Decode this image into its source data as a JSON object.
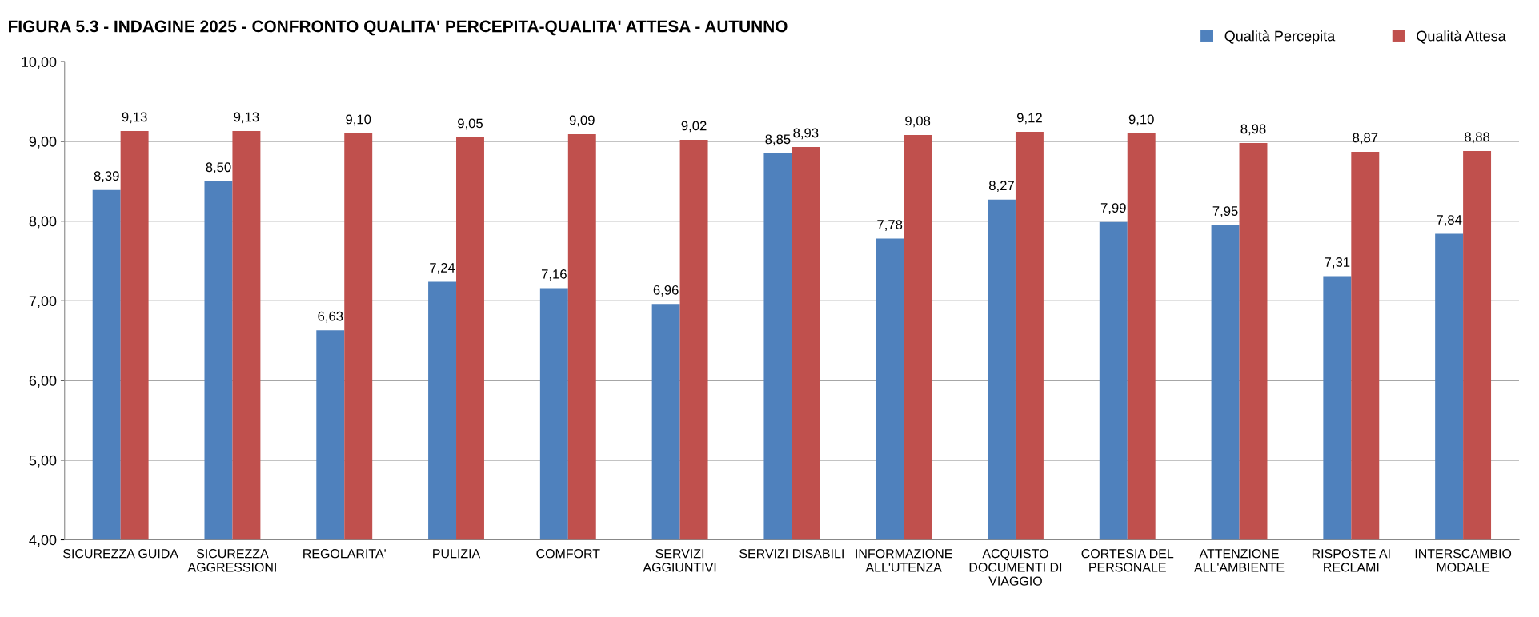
{
  "chart_data": {
    "type": "bar",
    "title": "FIGURA 5.3 - INDAGINE 2025 - CONFRONTO QUALITA' PERCEPITA-QUALITA' ATTESA - AUTUNNO",
    "categories": [
      "SICUREZZA GUIDA",
      "SICUREZZA\nAGGRESSIONI",
      "REGOLARITA'",
      "PULIZIA",
      "COMFORT",
      "SERVIZI\nAGGIUNTIVI",
      "SERVIZI DISABILI",
      "INFORMAZIONE\nALL'UTENZA",
      "ACQUISTO\nDOCUMENTI DI\nVIAGGIO",
      "CORTESIA DEL\nPERSONALE",
      "ATTENZIONE\nALL'AMBIENTE",
      "RISPOSTE AI\nRECLAMI",
      "INTERSCAMBIO\nMODALE"
    ],
    "series": [
      {
        "name": "Qualità Percepita",
        "color": "#4f81bd",
        "values": [
          8.39,
          8.5,
          6.63,
          7.24,
          7.16,
          6.96,
          8.85,
          7.78,
          8.27,
          7.99,
          7.95,
          7.31,
          7.84
        ],
        "value_labels": [
          "8,39",
          "8,50",
          "6,63",
          "7,24",
          "7,16",
          "6,96",
          "8,85",
          "7,78",
          "8,27",
          "7,99",
          "7,95",
          "7,31",
          "7,84"
        ]
      },
      {
        "name": "Qualità Attesa",
        "color": "#c0504d",
        "values": [
          9.13,
          9.13,
          9.1,
          9.05,
          9.09,
          9.02,
          8.93,
          9.08,
          9.12,
          9.1,
          8.98,
          8.87,
          8.88
        ],
        "value_labels": [
          "9,13",
          "9,13",
          "9,10",
          "9,05",
          "9,09",
          "9,02",
          "8,93",
          "9,08",
          "9,12",
          "9,10",
          "8,98",
          "8,87",
          "8,88"
        ]
      }
    ],
    "ylim": [
      4,
      10
    ],
    "yticks": [
      {
        "value": 4,
        "label": "4,00"
      },
      {
        "value": 5,
        "label": "5,00"
      },
      {
        "value": 6,
        "label": "6,00"
      },
      {
        "value": 7,
        "label": "7,00"
      },
      {
        "value": 8,
        "label": "8,00"
      },
      {
        "value": 9,
        "label": "9,00"
      },
      {
        "value": 10,
        "label": "10,00"
      }
    ],
    "grid": "y",
    "legend": "top right"
  }
}
